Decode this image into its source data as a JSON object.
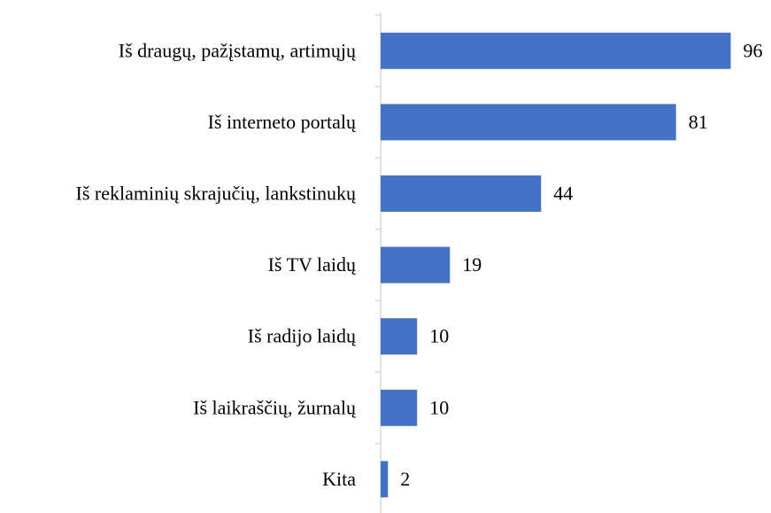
{
  "chart_data": {
    "type": "bar",
    "orientation": "horizontal",
    "categories": [
      "Iš draugų, pažįstamų, artimųjų",
      "Iš interneto portalų",
      "Iš reklaminių skrajučių, lankstinukų",
      "Iš TV laidų",
      "Iš radijo laidų",
      "Iš laikraščių, žurnalų",
      "Kita"
    ],
    "values": [
      96,
      81,
      44,
      19,
      10,
      10,
      2
    ],
    "color": "#4472c4"
  }
}
